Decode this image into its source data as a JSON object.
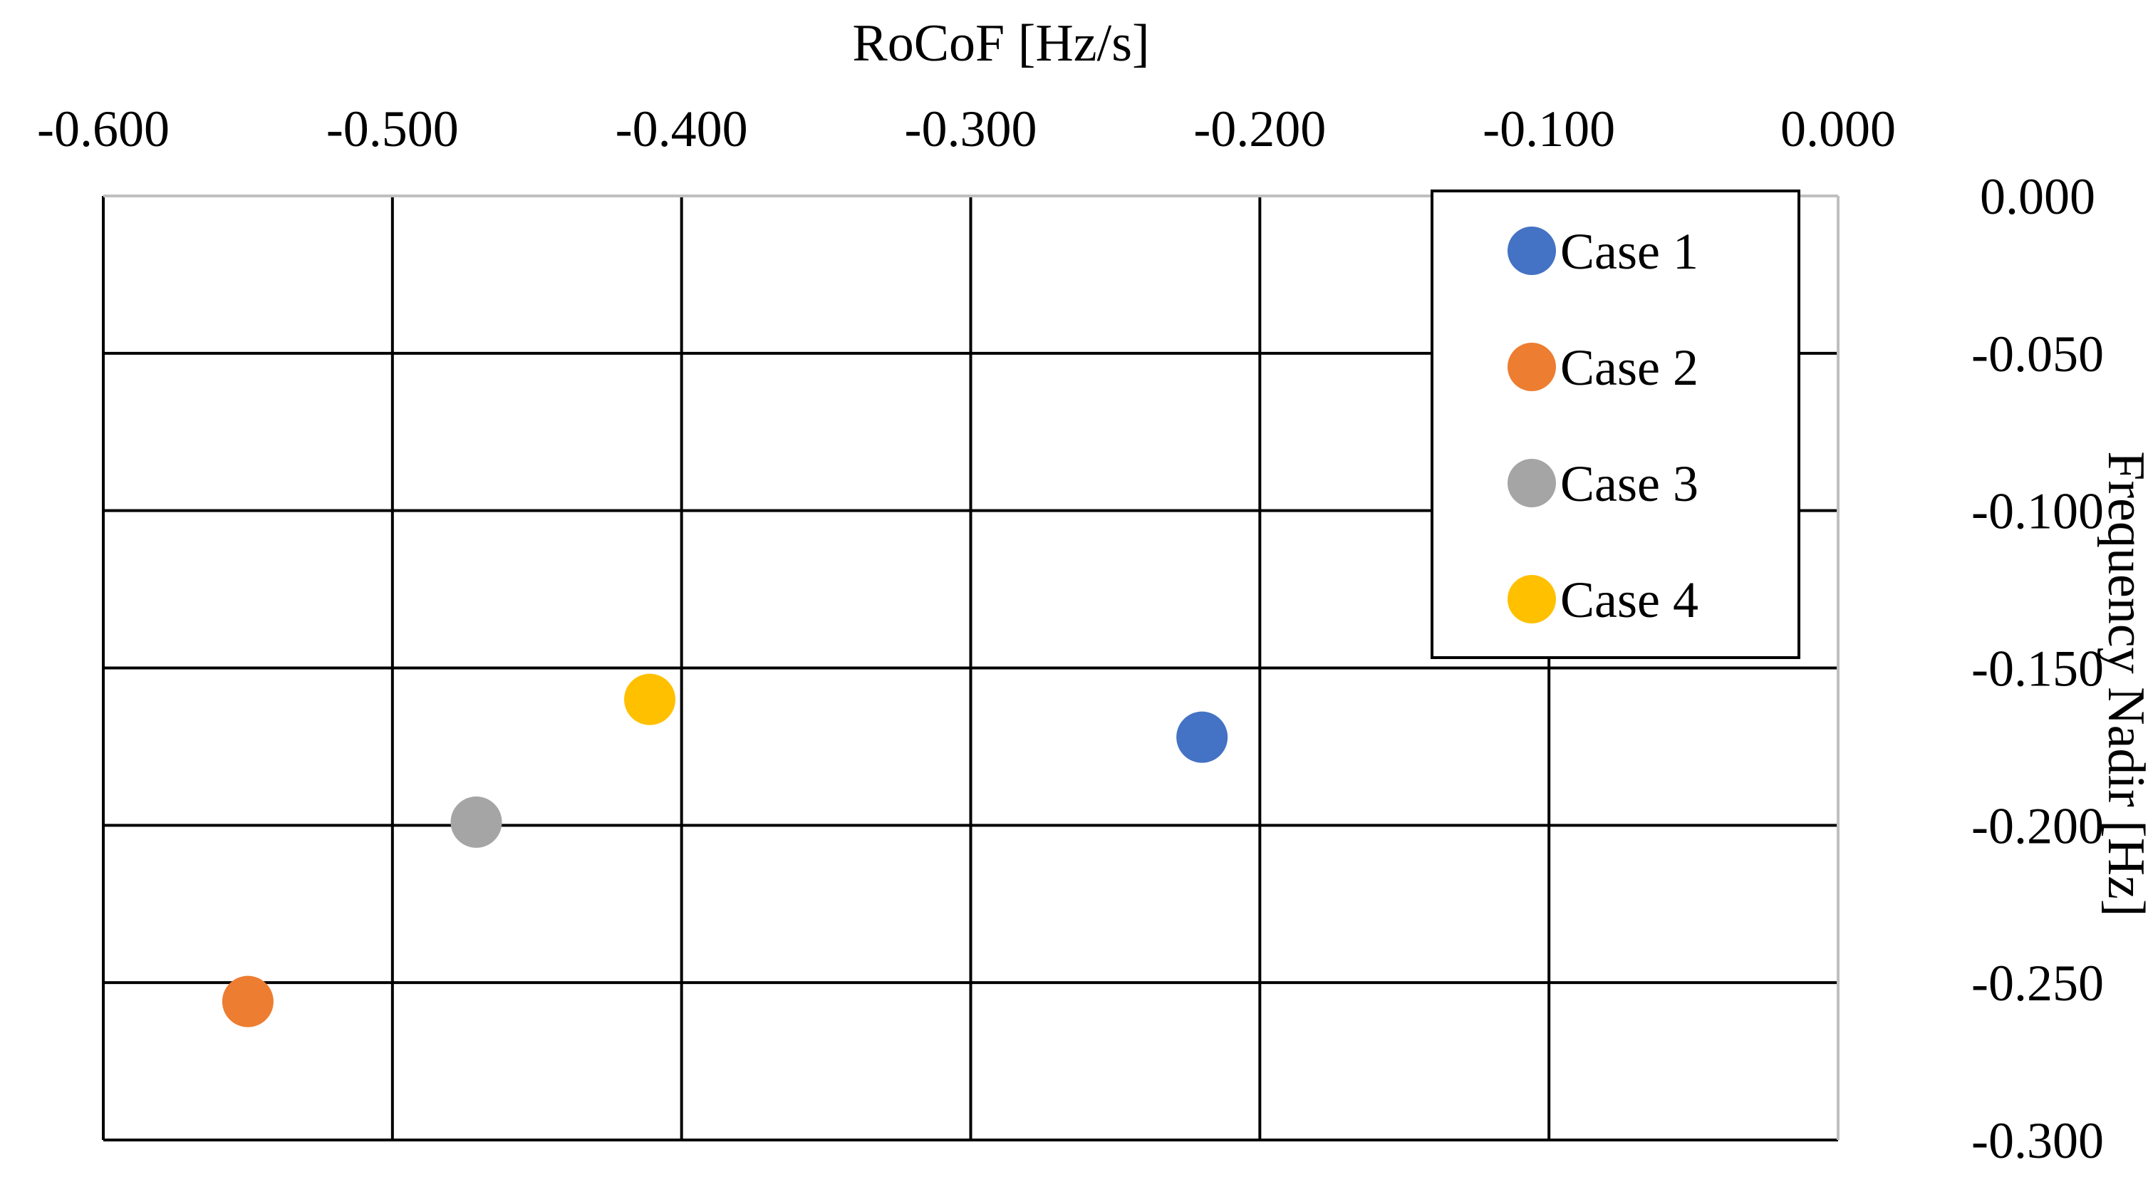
{
  "chart_data": {
    "type": "scatter",
    "title": "",
    "xlabel": "RoCoF [Hz/s]",
    "ylabel": "Frequency Nadir [Hz]",
    "xlim": [
      -0.6,
      0.0
    ],
    "ylim": [
      -0.3,
      0.0
    ],
    "x_axis_position": "top",
    "y_axis_position": "right",
    "x_ticks": [
      "-0.600",
      "-0.500",
      "-0.400",
      "-0.300",
      "-0.200",
      "-0.100",
      "0.000"
    ],
    "y_ticks": [
      "0.000",
      "-0.050",
      "-0.100",
      "-0.150",
      "-0.200",
      "-0.250",
      "-0.300"
    ],
    "grid": true,
    "legend_position": "top-right",
    "series": [
      {
        "name": "Case 1",
        "color": "#4472C4",
        "points": [
          {
            "x": -0.22,
            "y": -0.172
          }
        ]
      },
      {
        "name": "Case 2",
        "color": "#ED7D31",
        "points": [
          {
            "x": -0.55,
            "y": -0.256
          }
        ]
      },
      {
        "name": "Case 3",
        "color": "#A5A5A5",
        "points": [
          {
            "x": -0.471,
            "y": -0.199
          }
        ]
      },
      {
        "name": "Case 4",
        "color": "#FFC000",
        "points": [
          {
            "x": -0.411,
            "y": -0.16
          }
        ]
      }
    ]
  }
}
